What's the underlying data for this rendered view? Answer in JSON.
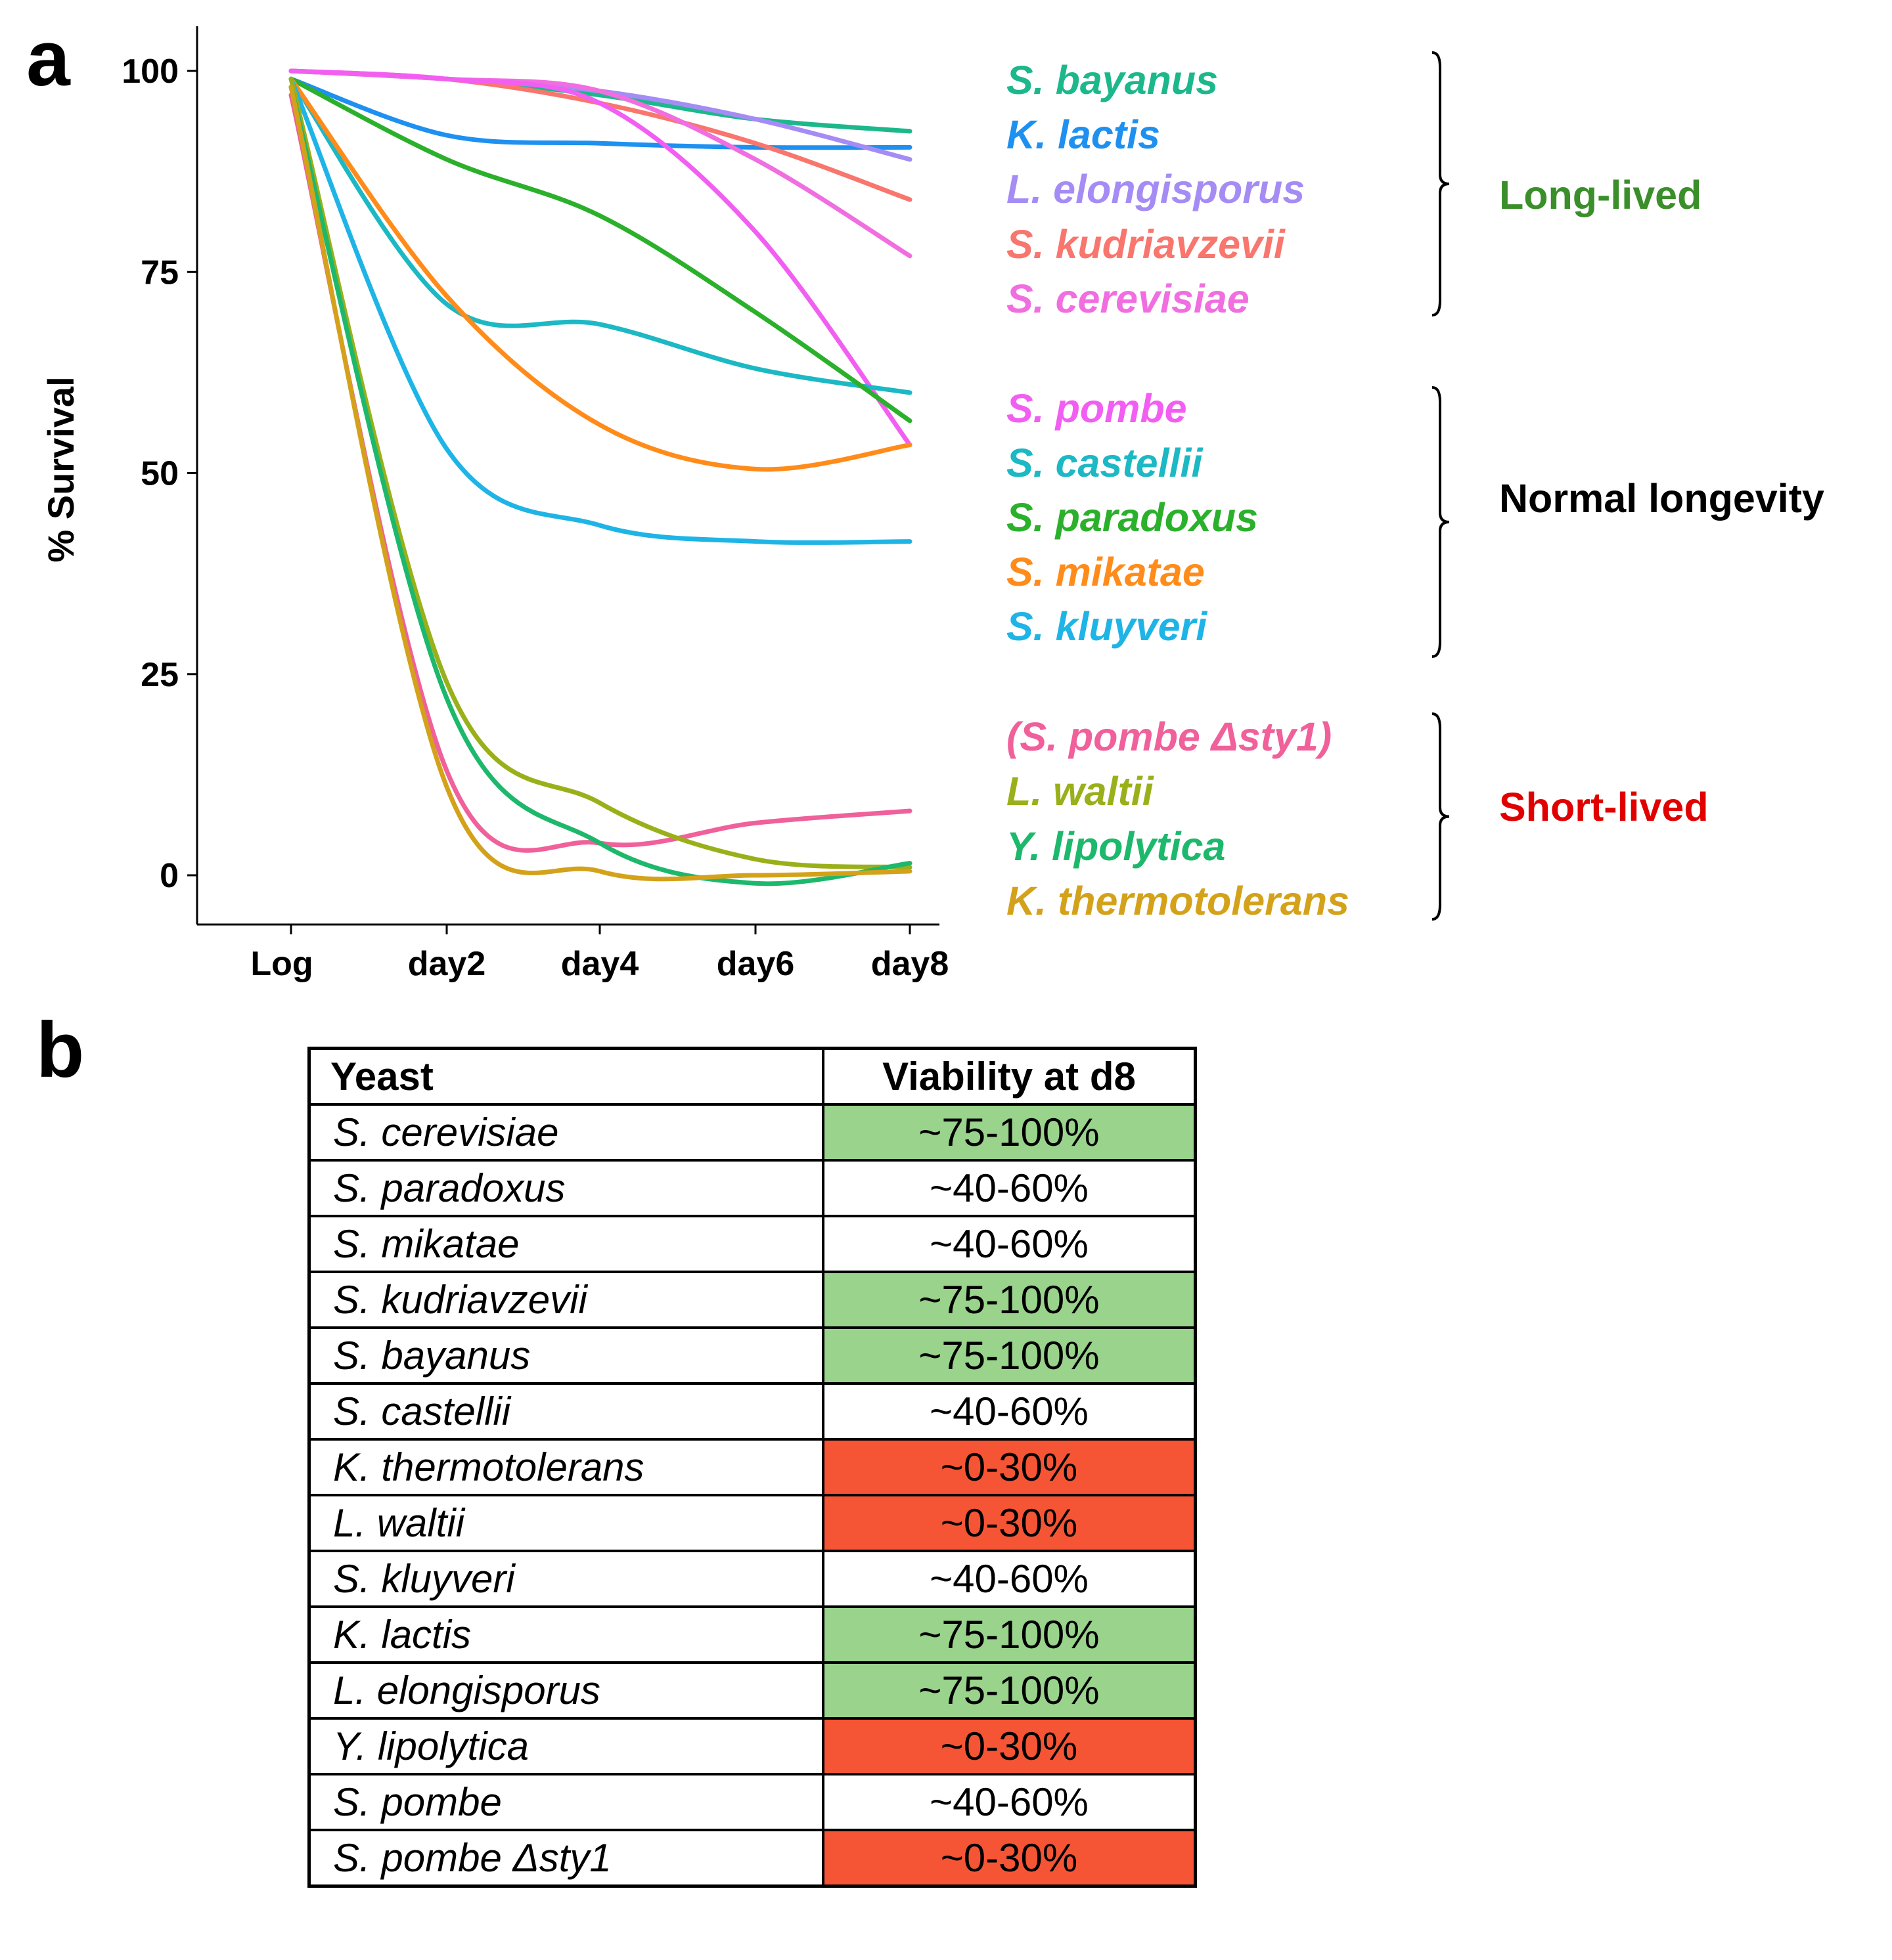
{
  "panel_a_label": "a",
  "panel_b_label": "b",
  "chart_data": [
    {
      "type": "line",
      "ylabel": "% Survival",
      "xlabel": "",
      "categories": [
        "Log",
        "day2",
        "day4",
        "day6",
        "day8"
      ],
      "y_ticks": [
        0,
        25,
        50,
        75,
        100
      ],
      "ylim": [
        -5,
        104
      ],
      "series": [
        {
          "name": "S. bayanus",
          "color": "#1cb88c",
          "values": [
            100,
            99,
            97,
            94,
            92.5
          ],
          "group": "Long-lived"
        },
        {
          "name": "K. lactis",
          "color": "#1e90f0",
          "values": [
            99,
            92,
            91,
            90.5,
            90.5
          ],
          "group": "Long-lived"
        },
        {
          "name": "L. elongisporus",
          "color": "#a58cf5",
          "values": [
            100,
            99,
            97.5,
            94,
            89
          ],
          "group": "Long-lived"
        },
        {
          "name": "S. kudriavzevii",
          "color": "#f8766d",
          "values": [
            100,
            99,
            96,
            91,
            84
          ],
          "group": "Long-lived"
        },
        {
          "name": "S. cerevisiae",
          "color": "#f06ee0",
          "values": [
            100,
            99,
            97.5,
            89,
            77
          ],
          "group": "Long-lived"
        },
        {
          "name": "S. pombe",
          "color": "#f25ef2",
          "values": [
            100,
            99,
            96,
            80,
            53.5
          ],
          "group": "Normal longevity"
        },
        {
          "name": "S. castellii",
          "color": "#1cb8c4",
          "values": [
            99,
            71,
            68.5,
            63,
            60
          ],
          "group": "Normal longevity"
        },
        {
          "name": "S. paradoxus",
          "color": "#2bb02b",
          "values": [
            99,
            89,
            82,
            70,
            56.5
          ],
          "group": "Normal longevity"
        },
        {
          "name": "S. mikatae",
          "color": "#ff8c1a",
          "values": [
            99,
            72,
            56,
            50.5,
            53.5
          ],
          "group": "Normal longevity"
        },
        {
          "name": "S. kluyveri",
          "color": "#1eb4e6",
          "values": [
            99,
            53,
            43.5,
            41.5,
            41.5
          ],
          "group": "Normal longevity"
        },
        {
          "name": "(S. pombe Δsty1)",
          "color": "#f0609a",
          "values": [
            97,
            13,
            4,
            6.5,
            8
          ],
          "group": "Short-lived"
        },
        {
          "name": "L. waltii",
          "color": "#9ab01a",
          "values": [
            99,
            24,
            9,
            2,
            1
          ],
          "group": "Short-lived"
        },
        {
          "name": "Y. lipolytica",
          "color": "#1db86c",
          "values": [
            98,
            22,
            4,
            -1,
            1.5
          ],
          "group": "Short-lived"
        },
        {
          "name": "K. thermotolerans",
          "color": "#d4a21a",
          "values": [
            98,
            11,
            0.5,
            0,
            0.5
          ],
          "group": "Short-lived"
        }
      ],
      "groups": [
        {
          "label": "Long-lived",
          "color": "#3a8f2a"
        },
        {
          "label": "Normal longevity",
          "color": "#000000"
        },
        {
          "label": "Short-lived",
          "color": "#e00000"
        }
      ]
    },
    {
      "type": "table",
      "columns": [
        "Yeast",
        "Viability at d8"
      ],
      "rows": [
        {
          "yeast": "S. cerevisiae",
          "viability": "~75-100%",
          "color": "#99d38c"
        },
        {
          "yeast": "S. paradoxus",
          "viability": "~40-60%",
          "color": "#ffffff"
        },
        {
          "yeast": "S. mikatae",
          "viability": "~40-60%",
          "color": "#ffffff"
        },
        {
          "yeast": "S. kudriavzevii",
          "viability": "~75-100%",
          "color": "#99d38c"
        },
        {
          "yeast": "S. bayanus",
          "viability": "~75-100%",
          "color": "#99d38c"
        },
        {
          "yeast": "S. castellii",
          "viability": "~40-60%",
          "color": "#ffffff"
        },
        {
          "yeast": "K. thermotolerans",
          "viability": "~0-30%",
          "color": "#f65535"
        },
        {
          "yeast": "L. waltii",
          "viability": "~0-30%",
          "color": "#f65535"
        },
        {
          "yeast": "S. kluyveri",
          "viability": "~40-60%",
          "color": "#ffffff"
        },
        {
          "yeast": "K. lactis",
          "viability": "~75-100%",
          "color": "#99d38c"
        },
        {
          "yeast": "L. elongisporus",
          "viability": "~75-100%",
          "color": "#99d38c"
        },
        {
          "yeast": "Y. lipolytica",
          "viability": "~0-30%",
          "color": "#f65535"
        },
        {
          "yeast": "S. pombe",
          "viability": "~40-60%",
          "color": "#ffffff"
        },
        {
          "yeast": "S. pombe Δsty1",
          "viability": "~0-30%",
          "color": "#f65535"
        }
      ]
    }
  ]
}
